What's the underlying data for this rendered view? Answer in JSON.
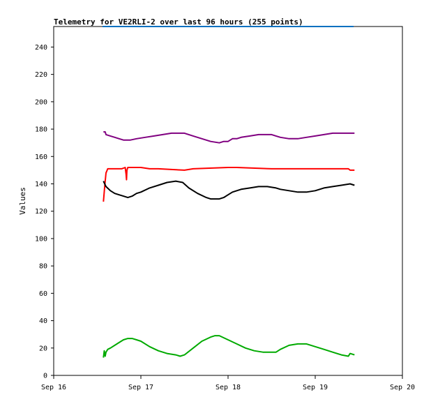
{
  "chart_data": {
    "type": "line",
    "title": "Telemetry for VE2RLI-2 over last 96 hours (255 points)",
    "xlabel": "",
    "ylabel": "Values",
    "xlim": [
      0,
      4
    ],
    "ylim": [
      0,
      255
    ],
    "x_ticks": [
      {
        "value": 0,
        "label": "Sep 16"
      },
      {
        "value": 1,
        "label": "Sep 17"
      },
      {
        "value": 2,
        "label": "Sep 18"
      },
      {
        "value": 3,
        "label": "Sep 19"
      },
      {
        "value": 4,
        "label": "Sep 20"
      }
    ],
    "y_ticks": [
      0,
      20,
      40,
      60,
      80,
      100,
      120,
      140,
      160,
      180,
      200,
      220,
      240
    ],
    "grid": false,
    "series": [
      {
        "color": "#800080",
        "x": [
          0.57,
          0.59,
          0.6,
          0.65,
          0.7,
          0.75,
          0.8,
          0.88,
          0.95,
          1.05,
          1.15,
          1.25,
          1.35,
          1.45,
          1.5,
          1.6,
          1.7,
          1.8,
          1.9,
          1.95,
          2.0,
          2.05,
          2.1,
          2.15,
          2.25,
          2.35,
          2.45,
          2.5,
          2.55,
          2.6,
          2.7,
          2.8,
          2.9,
          3.0,
          3.1,
          3.2,
          3.3,
          3.4,
          3.45
        ],
        "y": [
          178,
          178,
          176,
          175,
          174,
          173,
          172,
          172,
          173,
          174,
          175,
          176,
          177,
          177,
          177,
          175,
          173,
          171,
          170,
          171,
          171,
          173,
          173,
          174,
          175,
          176,
          176,
          176,
          175,
          174,
          173,
          173,
          174,
          175,
          176,
          177,
          177,
          177,
          177
        ]
      },
      {
        "color": "#ff0000",
        "x": [
          0.57,
          0.585,
          0.6,
          0.62,
          0.7,
          0.78,
          0.82,
          0.83,
          0.835,
          0.84,
          0.85,
          1.0,
          1.1,
          1.2,
          1.5,
          1.6,
          2.0,
          2.1,
          2.5,
          3.0,
          3.2,
          3.38,
          3.4,
          3.45
        ],
        "y": [
          127,
          138,
          148,
          151,
          151,
          151,
          152,
          147,
          143,
          150,
          152,
          152,
          151,
          151,
          150,
          151,
          152,
          152,
          151,
          151,
          151,
          151,
          150,
          150
        ]
      },
      {
        "color": "#000000",
        "x": [
          0.57,
          0.6,
          0.65,
          0.7,
          0.75,
          0.8,
          0.85,
          0.9,
          0.95,
          1.0,
          1.1,
          1.2,
          1.3,
          1.4,
          1.48,
          1.55,
          1.65,
          1.75,
          1.8,
          1.85,
          1.9,
          1.95,
          2.0,
          2.05,
          2.1,
          2.15,
          2.25,
          2.35,
          2.45,
          2.55,
          2.6,
          2.7,
          2.8,
          2.9,
          3.0,
          3.1,
          3.2,
          3.3,
          3.4,
          3.45
        ],
        "y": [
          142,
          138,
          135,
          133,
          132,
          131,
          130,
          131,
          133,
          134,
          137,
          139,
          141,
          142,
          141,
          137,
          133,
          130,
          129,
          129,
          129,
          130,
          132,
          134,
          135,
          136,
          137,
          138,
          138,
          137,
          136,
          135,
          134,
          134,
          135,
          137,
          138,
          139,
          140,
          139
        ]
      },
      {
        "color": "#00aa00",
        "x": [
          0.57,
          0.58,
          0.59,
          0.6,
          0.62,
          0.65,
          0.7,
          0.75,
          0.8,
          0.85,
          0.9,
          0.95,
          1.0,
          1.1,
          1.2,
          1.3,
          1.4,
          1.45,
          1.5,
          1.6,
          1.7,
          1.8,
          1.85,
          1.9,
          2.0,
          2.1,
          2.2,
          2.3,
          2.4,
          2.5,
          2.55,
          2.6,
          2.7,
          2.8,
          2.9,
          3.0,
          3.1,
          3.2,
          3.3,
          3.38,
          3.4,
          3.45
        ],
        "y": [
          13,
          18,
          14,
          17,
          19,
          20,
          22,
          24,
          26,
          27,
          27,
          26,
          25,
          21,
          18,
          16,
          15,
          14,
          15,
          20,
          25,
          28,
          29,
          29,
          26,
          23,
          20,
          18,
          17,
          17,
          17,
          19,
          22,
          23,
          23,
          21,
          19,
          17,
          15,
          14,
          16,
          15
        ]
      }
    ]
  }
}
